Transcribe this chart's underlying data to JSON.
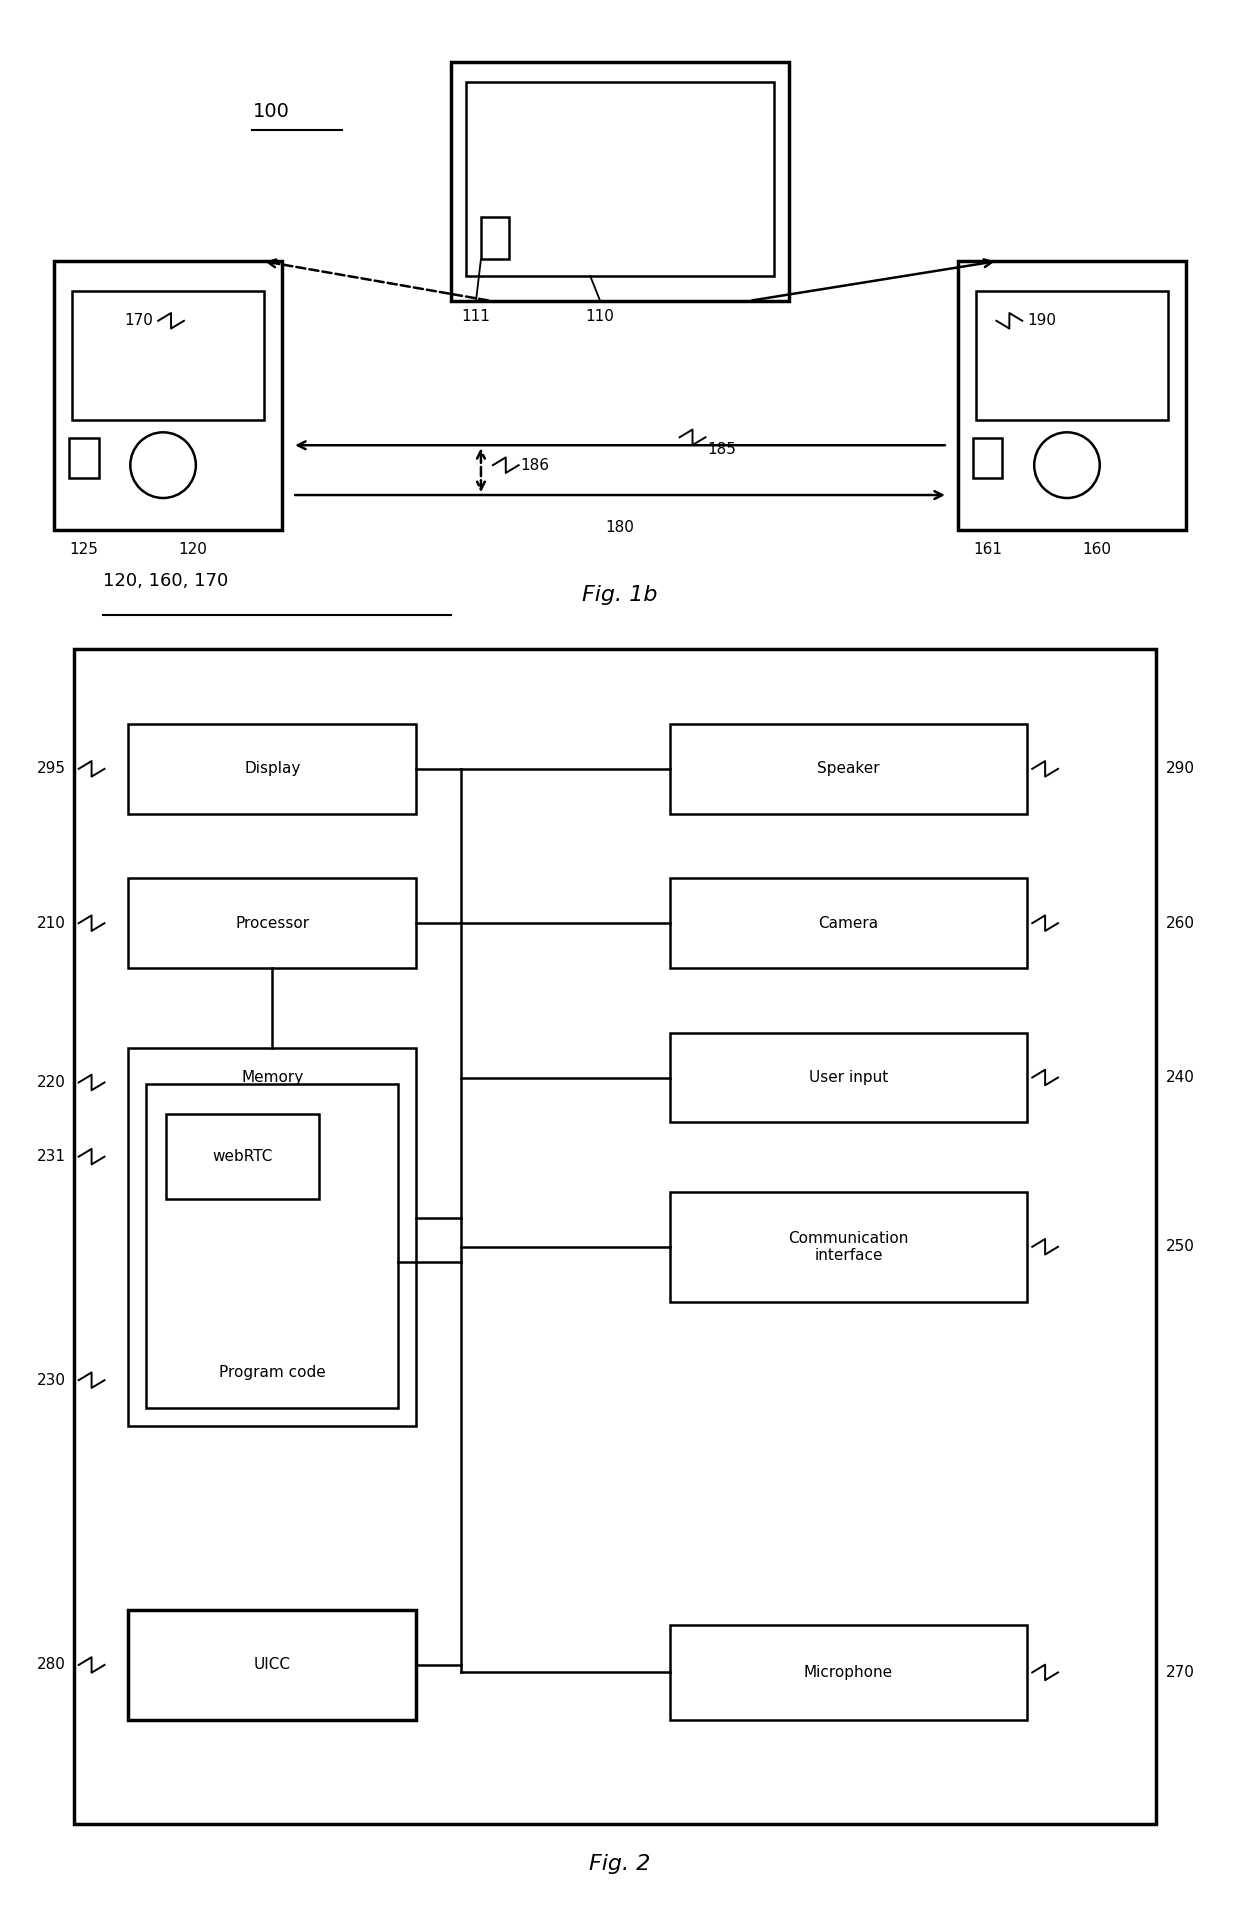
{
  "bg_color": "#ffffff",
  "fig_width": 12.4,
  "fig_height": 19.28,
  "fig1b_caption": "Fig. 1b",
  "fig2_caption": "Fig. 2",
  "label_100": "100",
  "label_110": "110",
  "label_111": "111",
  "label_120": "120",
  "label_125": "125",
  "label_160": "160",
  "label_161": "161",
  "label_170": "170",
  "label_180": "180",
  "label_185": "185",
  "label_186": "186",
  "label_190": "190",
  "label_120_160_170": "120, 160, 170",
  "label_295": "295",
  "label_290": "290",
  "label_210": "210",
  "label_260": "260",
  "label_220": "220",
  "label_240": "240",
  "label_231": "231",
  "label_250": "250",
  "label_230": "230",
  "label_270": "270",
  "label_280": "280",
  "box_display": "Display",
  "box_speaker": "Speaker",
  "box_processor": "Processor",
  "box_camera": "Camera",
  "box_memory": "Memory",
  "box_userinput": "User input",
  "box_webrtc": "webRTC",
  "box_comminterface": "Communication\ninterface",
  "box_programcode": "Program code",
  "box_microphone": "Microphone",
  "box_uicc": "UICC"
}
